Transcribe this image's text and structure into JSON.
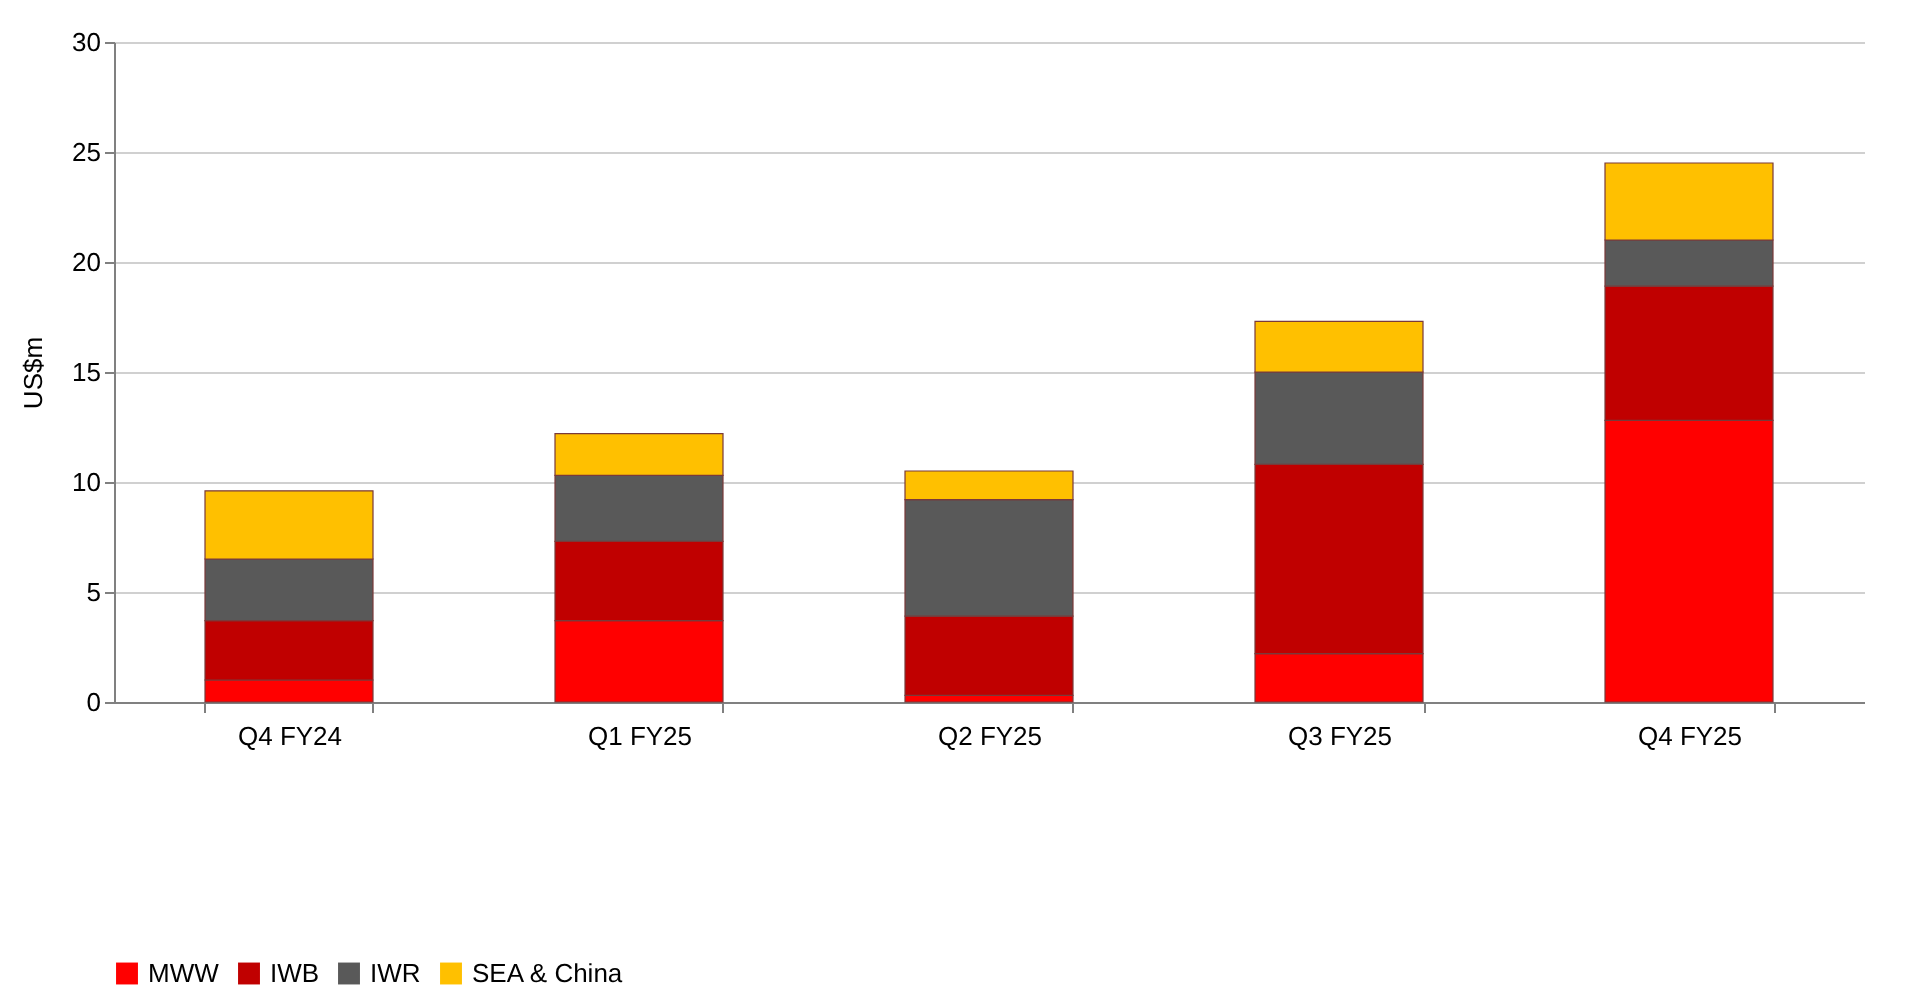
{
  "chart_data": {
    "type": "bar",
    "stacked": true,
    "ylabel": "US$m",
    "categories": [
      "Q4 FY24",
      "Q1 FY25",
      "Q2 FY25",
      "Q3 FY25",
      "Q4 FY25"
    ],
    "series": [
      {
        "name": "MWW",
        "color": "#ff0000",
        "values": [
          1.0,
          3.7,
          0.3,
          2.2,
          12.8
        ]
      },
      {
        "name": "IWB",
        "color": "#c00000",
        "values": [
          2.7,
          3.6,
          3.6,
          8.6,
          6.1
        ]
      },
      {
        "name": "IWR",
        "color": "#595959",
        "values": [
          2.8,
          3.0,
          5.3,
          4.2,
          2.1
        ]
      },
      {
        "name": "SEA & China",
        "color": "#ffc000",
        "values": [
          3.1,
          1.9,
          1.3,
          2.3,
          3.5
        ]
      }
    ],
    "ylim": [
      0,
      30
    ],
    "yticks": [
      0,
      5,
      10,
      15,
      20,
      25,
      30
    ],
    "grid": "y",
    "legend": "bottom"
  }
}
